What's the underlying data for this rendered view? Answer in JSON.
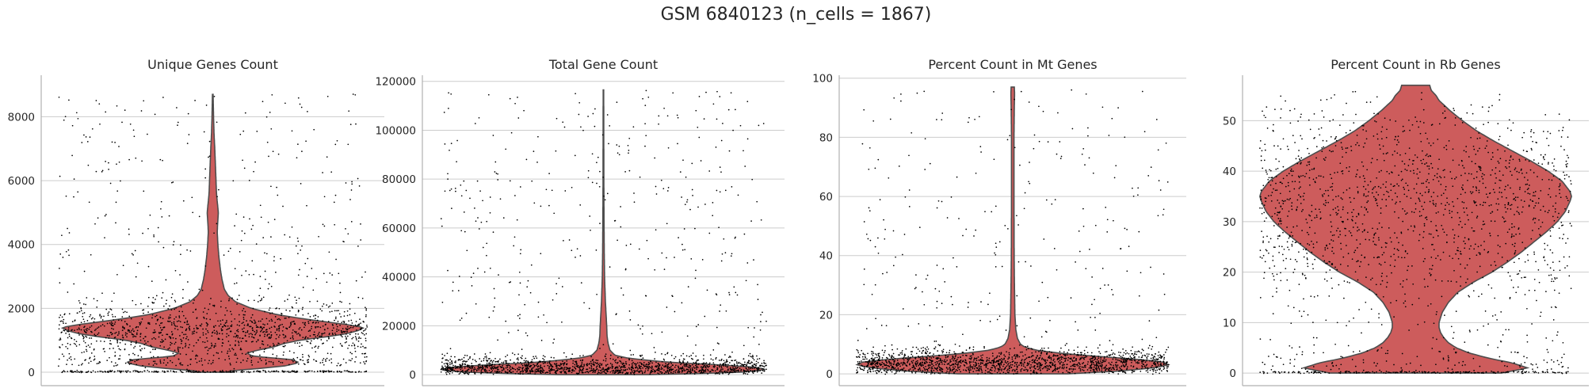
{
  "title": "GSM 6840123 (n_cells = 1867)",
  "colors": {
    "violin_fill": "#cd5c5c",
    "violin_edge": "#4d4d4d",
    "points": "#000000",
    "grid": "#cccccc",
    "spine": "#b0b0b0"
  },
  "chart_data": [
    {
      "type": "violin",
      "title": "Unique Genes Count",
      "ylim": [
        -420,
        9300
      ],
      "yticks": [
        0,
        2000,
        4000,
        6000,
        8000
      ],
      "grid": true,
      "max": 8700,
      "density": [
        [
          0,
          0.12
        ],
        [
          50,
          0.11
        ],
        [
          100,
          0.26
        ],
        [
          200,
          0.47
        ],
        [
          300,
          0.56
        ],
        [
          400,
          0.51
        ],
        [
          500,
          0.26
        ],
        [
          600,
          0.22
        ],
        [
          700,
          0.3
        ],
        [
          800,
          0.4
        ],
        [
          900,
          0.46
        ],
        [
          1000,
          0.56
        ],
        [
          1100,
          0.72
        ],
        [
          1200,
          0.86
        ],
        [
          1300,
          0.94
        ],
        [
          1400,
          0.98
        ],
        [
          1500,
          0.86
        ],
        [
          1650,
          0.62
        ],
        [
          1800,
          0.42
        ],
        [
          2000,
          0.25
        ],
        [
          2200,
          0.15
        ],
        [
          2400,
          0.1
        ],
        [
          2600,
          0.075
        ],
        [
          2900,
          0.06
        ],
        [
          3200,
          0.05
        ],
        [
          3600,
          0.04
        ],
        [
          4000,
          0.033
        ],
        [
          4400,
          0.029
        ],
        [
          4700,
          0.032
        ],
        [
          5000,
          0.036
        ],
        [
          5300,
          0.03
        ],
        [
          5600,
          0.024
        ],
        [
          6000,
          0.021
        ],
        [
          6500,
          0.017
        ],
        [
          7000,
          0.013
        ],
        [
          7500,
          0.008
        ],
        [
          8000,
          0.005
        ],
        [
          8700,
          0.002
        ]
      ],
      "points": {
        "n": 1867,
        "core": [
          200,
          2400
        ],
        "outlier_frac": 0.12,
        "zero_frac": 0.08
      }
    },
    {
      "type": "violin",
      "title": "Total Gene Count",
      "ylim": [
        -4500,
        122500
      ],
      "yticks": [
        0,
        20000,
        40000,
        60000,
        80000,
        100000,
        120000
      ],
      "grid": true,
      "max": 116500,
      "density": [
        [
          0,
          0.28
        ],
        [
          500,
          0.6
        ],
        [
          1000,
          0.85
        ],
        [
          2000,
          1.0
        ],
        [
          3000,
          0.94
        ],
        [
          4000,
          0.72
        ],
        [
          5000,
          0.42
        ],
        [
          6000,
          0.25
        ],
        [
          7000,
          0.13
        ],
        [
          8000,
          0.07
        ],
        [
          10000,
          0.04
        ],
        [
          13000,
          0.028
        ],
        [
          16000,
          0.022
        ],
        [
          20000,
          0.02
        ],
        [
          25000,
          0.016
        ],
        [
          30000,
          0.012
        ],
        [
          40000,
          0.007
        ],
        [
          50000,
          0.005
        ],
        [
          60000,
          0.004
        ],
        [
          70000,
          0.003
        ],
        [
          80000,
          0.0025
        ],
        [
          100000,
          0.002
        ],
        [
          116500,
          0.0015
        ]
      ],
      "points": {
        "n": 1867,
        "core": [
          200,
          9000
        ],
        "outlier_frac": 0.12,
        "zero_frac": 0.0
      }
    },
    {
      "type": "violin",
      "title": "Percent Count in Mt Genes",
      "ylim": [
        -4,
        101
      ],
      "yticks": [
        0,
        20,
        40,
        60,
        80,
        100
      ],
      "grid": true,
      "max": 97,
      "density": [
        [
          0,
          0.35
        ],
        [
          1,
          0.7
        ],
        [
          2,
          0.9
        ],
        [
          3,
          1.0
        ],
        [
          4,
          0.96
        ],
        [
          5,
          0.78
        ],
        [
          6,
          0.52
        ],
        [
          7,
          0.3
        ],
        [
          8,
          0.15
        ],
        [
          9,
          0.08
        ],
        [
          10,
          0.05
        ],
        [
          12,
          0.03
        ],
        [
          15,
          0.02
        ],
        [
          20,
          0.014
        ],
        [
          30,
          0.011
        ],
        [
          40,
          0.009
        ],
        [
          60,
          0.008
        ],
        [
          80,
          0.008
        ],
        [
          90,
          0.01
        ],
        [
          95,
          0.012
        ],
        [
          97,
          0.01
        ]
      ],
      "points": {
        "n": 1867,
        "core": [
          0,
          10
        ],
        "outlier_frac": 0.08,
        "zero_frac": 0.0
      }
    },
    {
      "type": "violin",
      "title": "Percent Count in Rb Genes",
      "ylim": [
        -2.5,
        59
      ],
      "yticks": [
        0,
        10,
        20,
        30,
        40,
        50
      ],
      "grid": true,
      "max": 57,
      "density": [
        [
          0,
          0.55
        ],
        [
          1,
          0.72
        ],
        [
          2,
          0.62
        ],
        [
          3,
          0.46
        ],
        [
          4,
          0.34
        ],
        [
          5,
          0.26
        ],
        [
          6,
          0.21
        ],
        [
          7,
          0.18
        ],
        [
          8,
          0.16
        ],
        [
          9,
          0.15
        ],
        [
          10,
          0.15
        ],
        [
          12,
          0.17
        ],
        [
          14,
          0.21
        ],
        [
          16,
          0.27
        ],
        [
          18,
          0.37
        ],
        [
          20,
          0.49
        ],
        [
          22,
          0.59
        ],
        [
          24,
          0.68
        ],
        [
          26,
          0.76
        ],
        [
          28,
          0.84
        ],
        [
          30,
          0.91
        ],
        [
          32,
          0.96
        ],
        [
          34,
          0.99
        ],
        [
          35,
          1.0
        ],
        [
          36,
          0.99
        ],
        [
          38,
          0.94
        ],
        [
          40,
          0.85
        ],
        [
          42,
          0.74
        ],
        [
          44,
          0.62
        ],
        [
          46,
          0.5
        ],
        [
          48,
          0.39
        ],
        [
          50,
          0.3
        ],
        [
          52,
          0.22
        ],
        [
          54,
          0.15
        ],
        [
          55,
          0.13
        ],
        [
          56,
          0.1
        ],
        [
          57,
          0.09
        ]
      ],
      "points": {
        "n": 1867,
        "core": [
          0,
          56
        ],
        "outlier_frac": 0.0,
        "zero_frac": 0.06
      }
    }
  ]
}
